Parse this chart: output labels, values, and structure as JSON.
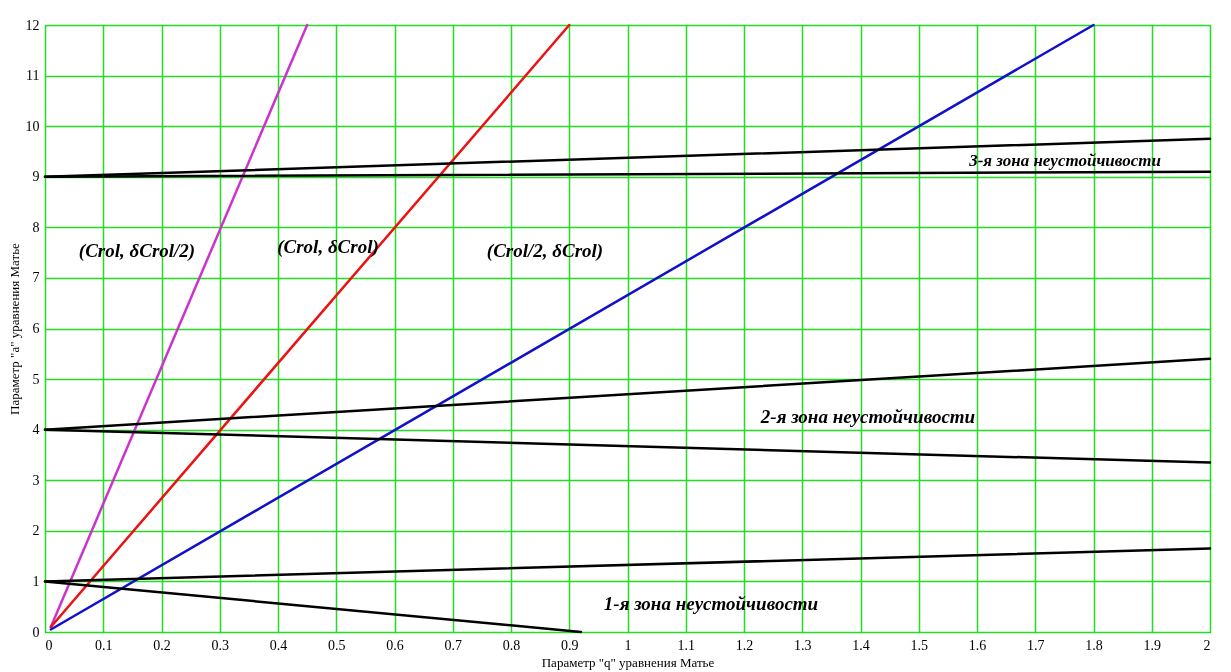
{
  "chart_data": {
    "type": "line",
    "xlabel": "Параметр \"q\" уравнения Матье",
    "ylabel": "Параметр \"a\" уравнения Матье",
    "xlim": [
      0,
      2
    ],
    "ylim": [
      0,
      12
    ],
    "xticks": [
      0,
      0.1,
      0.2,
      0.3,
      0.4,
      0.5,
      0.6,
      0.7,
      0.8,
      0.9,
      1,
      1.1,
      1.2,
      1.3,
      1.4,
      1.5,
      1.6,
      1.7,
      1.8,
      1.9,
      2
    ],
    "yticks": [
      0,
      1,
      2,
      3,
      4,
      5,
      6,
      7,
      8,
      9,
      10,
      11,
      12
    ],
    "grid": true,
    "legend": false,
    "marker": "none",
    "line_style": "solid",
    "series": [
      {
        "color": "#cc33cc",
        "x": [
          0.01,
          0.45
        ],
        "values": [
          0.1,
          12
        ]
      },
      {
        "color": "#ee1111",
        "x": [
          0.01,
          0.9
        ],
        "values": [
          0.1,
          12
        ]
      },
      {
        "color": "#1111cc",
        "x": [
          0.01,
          1.8
        ],
        "values": [
          0.05,
          12
        ]
      },
      {
        "color": "#000000",
        "x": [
          0,
          2
        ],
        "values": [
          1,
          1.65
        ]
      },
      {
        "color": "#000000",
        "x": [
          0,
          0.92
        ],
        "values": [
          1,
          0
        ]
      },
      {
        "color": "#000000",
        "x": [
          0,
          2
        ],
        "values": [
          4,
          5.4
        ]
      },
      {
        "color": "#000000",
        "x": [
          0,
          2
        ],
        "values": [
          4,
          3.35
        ]
      },
      {
        "color": "#000000",
        "x": [
          0,
          2
        ],
        "values": [
          9,
          9.75
        ]
      },
      {
        "color": "#000000",
        "x": [
          0,
          2
        ],
        "values": [
          9,
          9.1
        ]
      }
    ],
    "annotations": [
      "(Crol, δCrol/2)",
      "(Crol, δCrol)",
      "(Crol/2, δCrol)",
      "1-я зона неустойчивости",
      "2-я зона неустойчивости",
      "3-я зона неустойчивости"
    ]
  }
}
